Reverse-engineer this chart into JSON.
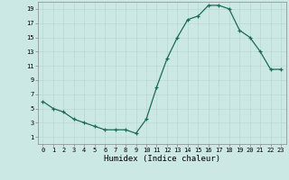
{
  "x": [
    0,
    1,
    2,
    3,
    4,
    5,
    6,
    7,
    8,
    9,
    10,
    11,
    12,
    13,
    14,
    15,
    16,
    17,
    18,
    19,
    20,
    21,
    22,
    23
  ],
  "y": [
    6,
    5,
    4.5,
    3.5,
    3,
    2.5,
    2,
    2,
    2,
    1.5,
    3.5,
    8,
    12,
    15,
    17.5,
    18,
    19.5,
    19.5,
    19,
    16,
    15,
    13,
    10.5,
    10.5
  ],
  "title": "",
  "xlabel": "Humidex (Indice chaleur)",
  "ylabel": "",
  "xlim": [
    -0.5,
    23.5
  ],
  "ylim": [
    0,
    20
  ],
  "yticks": [
    1,
    3,
    5,
    7,
    9,
    11,
    13,
    15,
    17,
    19
  ],
  "xticks": [
    0,
    1,
    2,
    3,
    4,
    5,
    6,
    7,
    8,
    9,
    10,
    11,
    12,
    13,
    14,
    15,
    16,
    17,
    18,
    19,
    20,
    21,
    22,
    23
  ],
  "line_color": "#1a6b5a",
  "marker": "+",
  "bg_color": "#cce8e4",
  "grid_color": "#b8d8d4",
  "axis_bg": "#cce8e4",
  "tick_fontsize": 5.0,
  "xlabel_fontsize": 6.5
}
